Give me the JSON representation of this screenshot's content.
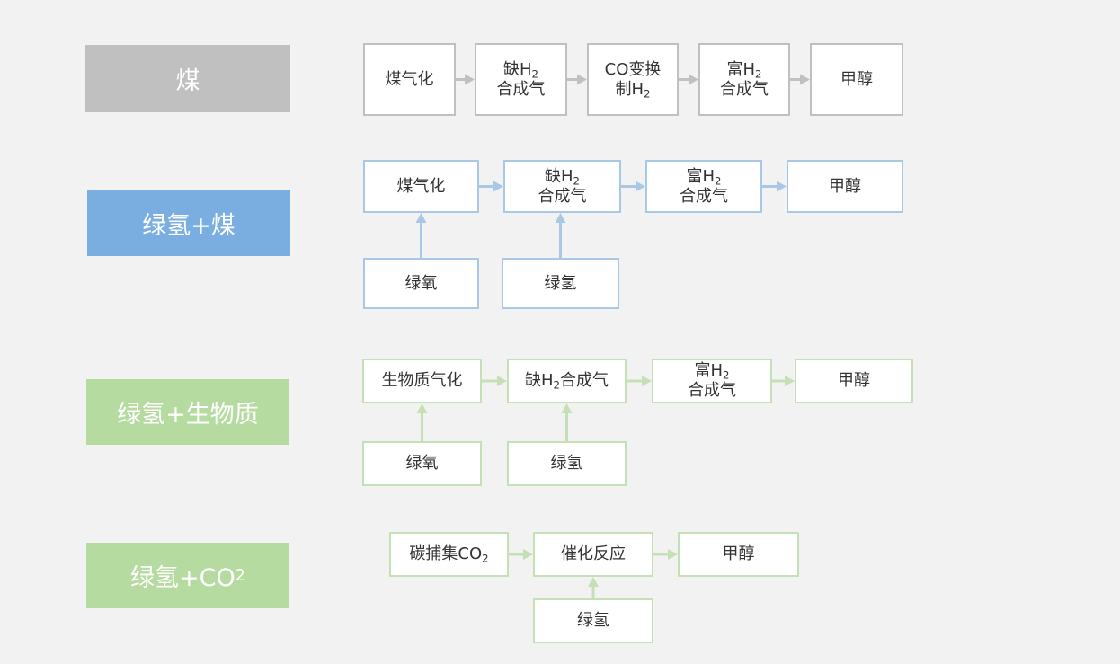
{
  "colors": {
    "background": "#f2f2f2",
    "gray": "#c0c0c0",
    "blue_fill": "#7aaee0",
    "blue_border": "#a9c8e6",
    "green_fill": "#b6dba0",
    "green_border": "#c5e0b4"
  },
  "rows": [
    {
      "label": [
        [
          "煤"
        ]
      ],
      "theme": "gray",
      "nodes": [
        {
          "id": "a1",
          "lines": [
            [
              "煤气化"
            ]
          ]
        },
        {
          "id": "a2",
          "lines": [
            [
              "缺H",
              "2"
            ],
            [
              "合成气"
            ]
          ]
        },
        {
          "id": "a3",
          "lines": [
            [
              "CO变换"
            ],
            [
              "制H",
              "2"
            ]
          ]
        },
        {
          "id": "a4",
          "lines": [
            [
              "富H",
              "2"
            ],
            [
              "合成气"
            ]
          ]
        },
        {
          "id": "a5",
          "lines": [
            [
              "甲醇"
            ]
          ]
        }
      ]
    },
    {
      "label": [
        [
          "绿氢+煤"
        ]
      ],
      "theme": "blue",
      "nodes": [
        {
          "id": "b1",
          "lines": [
            [
              "煤气化"
            ]
          ]
        },
        {
          "id": "b2",
          "lines": [
            [
              "缺H",
              "2"
            ],
            [
              "合成气"
            ]
          ]
        },
        {
          "id": "b3",
          "lines": [
            [
              "富H",
              "2"
            ],
            [
              "合成气"
            ]
          ]
        },
        {
          "id": "b4",
          "lines": [
            [
              "甲醇"
            ]
          ]
        },
        {
          "id": "b5",
          "lines": [
            [
              "绿氧"
            ]
          ]
        },
        {
          "id": "b6",
          "lines": [
            [
              "绿氢"
            ]
          ]
        }
      ]
    },
    {
      "label": [
        [
          "绿氢+生物质"
        ]
      ],
      "theme": "green",
      "nodes": [
        {
          "id": "c1",
          "lines": [
            [
              "生物质气化"
            ]
          ]
        },
        {
          "id": "c2",
          "lines": [
            [
              "缺H",
              "2",
              "合成气"
            ]
          ]
        },
        {
          "id": "c3",
          "lines": [
            [
              "富H",
              "2"
            ],
            [
              "合成气"
            ]
          ]
        },
        {
          "id": "c4",
          "lines": [
            [
              "甲醇"
            ]
          ]
        },
        {
          "id": "c5",
          "lines": [
            [
              "绿氧"
            ]
          ]
        },
        {
          "id": "c6",
          "lines": [
            [
              "绿氢"
            ]
          ]
        }
      ]
    },
    {
      "label": [
        [
          "绿氢+CO",
          "2"
        ]
      ],
      "theme": "green",
      "nodes": [
        {
          "id": "d1",
          "lines": [
            [
              "碳捕集CO",
              "2"
            ]
          ]
        },
        {
          "id": "d2",
          "lines": [
            [
              "催化反应"
            ]
          ]
        },
        {
          "id": "d3",
          "lines": [
            [
              "甲醇"
            ]
          ]
        },
        {
          "id": "d4",
          "lines": [
            [
              "绿氢"
            ]
          ]
        }
      ]
    }
  ],
  "edges": [
    [
      "a1",
      "a2"
    ],
    [
      "a2",
      "a3"
    ],
    [
      "a3",
      "a4"
    ],
    [
      "a4",
      "a5"
    ],
    [
      "b1",
      "b2"
    ],
    [
      "b2",
      "b3"
    ],
    [
      "b3",
      "b4"
    ],
    [
      "b5",
      "b1"
    ],
    [
      "b6",
      "b2"
    ],
    [
      "c1",
      "c2"
    ],
    [
      "c2",
      "c3"
    ],
    [
      "c3",
      "c4"
    ],
    [
      "c5",
      "c1"
    ],
    [
      "c6",
      "c2"
    ],
    [
      "d1",
      "d2"
    ],
    [
      "d2",
      "d3"
    ],
    [
      "d4",
      "d2"
    ]
  ]
}
